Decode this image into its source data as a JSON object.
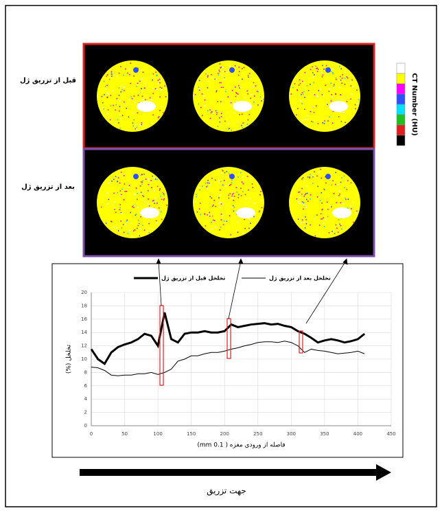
{
  "row_labels": [
    "قبل از تزریق ژل",
    "بعد از تزریق ژل"
  ],
  "colorbar_label": "CT Number (HU)",
  "direction_label": "جهت تزریق",
  "chart_data": {
    "type": "line",
    "x_label": "فاصله از ورودی مغزه ( 0.1 mm)",
    "y_label": "تخلخل (%)",
    "x": [
      0,
      10,
      20,
      30,
      40,
      50,
      60,
      70,
      80,
      90,
      100,
      110,
      120,
      130,
      140,
      150,
      160,
      170,
      180,
      190,
      200,
      210,
      220,
      230,
      240,
      250,
      260,
      270,
      280,
      290,
      300,
      310,
      320,
      330,
      340,
      350,
      360,
      370,
      380,
      390,
      400,
      410
    ],
    "series": [
      {
        "name": "تخلخل قبل از تزریق ژل",
        "color": "#000000",
        "width": 3,
        "values": [
          11.5,
          10,
          9.3,
          11,
          11.8,
          12.2,
          12.5,
          13,
          13.8,
          13.5,
          12,
          17,
          13,
          12.5,
          13.8,
          14,
          14,
          14.2,
          14,
          14,
          14.2,
          15.2,
          14.8,
          15,
          15.2,
          15.3,
          15.4,
          15.2,
          15.3,
          15,
          14.8,
          14.2,
          13.8,
          13.2,
          12.5,
          12.8,
          13,
          12.8,
          12.5,
          12.7,
          13,
          13.8
        ]
      },
      {
        "name": "تخلخل بعد از تزریق ژل",
        "color": "#000000",
        "width": 1,
        "values": [
          8.8,
          8.7,
          8.3,
          7.6,
          7.5,
          7.6,
          7.6,
          7.8,
          7.8,
          8,
          7.7,
          8,
          8.5,
          9.7,
          10,
          10.5,
          10.5,
          10.8,
          11,
          11,
          11.2,
          11.5,
          11.7,
          12,
          12.2,
          12.5,
          12.6,
          12.6,
          12.5,
          12.7,
          12.5,
          12,
          11,
          11.5,
          11.3,
          11.2,
          11,
          10.8,
          10.9,
          11,
          11.2,
          10.8
        ]
      }
    ],
    "xlim": [
      0,
      450
    ],
    "xticks": [
      0,
      50,
      100,
      150,
      200,
      250,
      300,
      350,
      400,
      450
    ],
    "ylim": [
      0,
      20
    ],
    "yticks": [
      0,
      2,
      4,
      6,
      8,
      10,
      12,
      14,
      16,
      18,
      20
    ],
    "grid": true
  }
}
